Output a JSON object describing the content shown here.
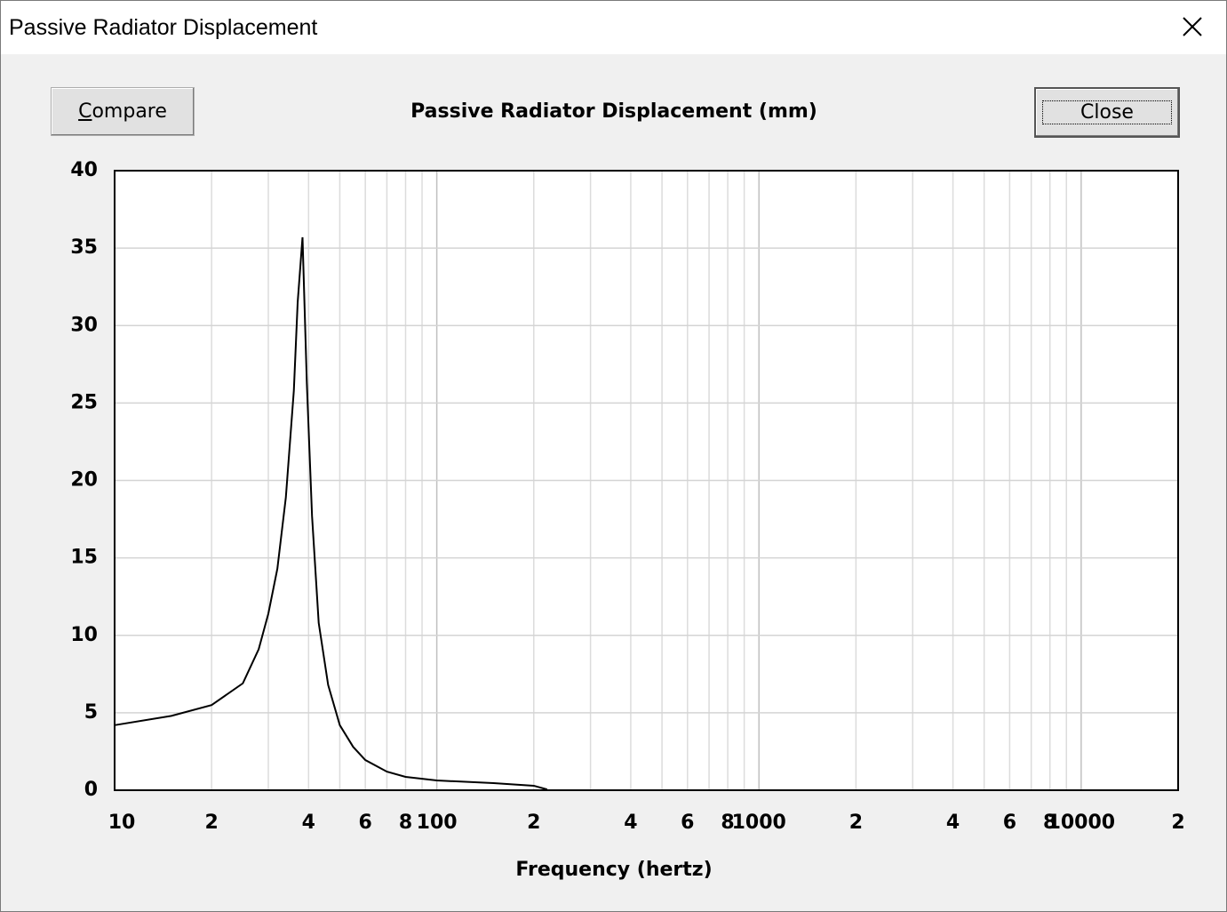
{
  "window": {
    "title": "Passive Radiator Displacement"
  },
  "buttons": {
    "compare": "Compare",
    "close": "Close"
  },
  "chart_data": {
    "type": "line",
    "title": "Passive Radiator Displacement (mm)",
    "x_label": "Frequency (hertz)",
    "x": [
      10,
      15,
      20,
      25,
      28,
      30,
      32,
      34,
      35,
      36,
      37,
      38.3,
      39.5,
      41,
      43,
      46,
      50,
      55,
      60,
      70,
      80,
      100,
      150,
      200,
      220
    ],
    "values": [
      4.2,
      4.8,
      5.5,
      6.9,
      9.1,
      11.4,
      14.3,
      18.9,
      22.4,
      25.8,
      31.5,
      35.7,
      26.3,
      17.7,
      10.8,
      6.8,
      4.2,
      2.8,
      1.95,
      1.2,
      0.86,
      0.63,
      0.46,
      0.29,
      0.05
    ],
    "color": "#000000",
    "xlog": true,
    "grid": true,
    "xlim": [
      10,
      20000
    ],
    "ylim": [
      0,
      40
    ],
    "xticks": [
      10,
      {
        "value": 20,
        "label": "2"
      },
      {
        "value": 40,
        "label": "4"
      },
      {
        "value": 60,
        "label": "6"
      },
      {
        "value": 80,
        "label": "8"
      },
      100,
      {
        "value": 200,
        "label": "2"
      },
      {
        "value": 400,
        "label": "4"
      },
      {
        "value": 600,
        "label": "6"
      },
      {
        "value": 800,
        "label": "8"
      },
      1000,
      {
        "value": 2000,
        "label": "2"
      },
      {
        "value": 4000,
        "label": "4"
      },
      {
        "value": 6000,
        "label": "6"
      },
      {
        "value": 8000,
        "label": "8"
      },
      10000,
      {
        "value": 20000,
        "label": "2"
      }
    ],
    "x_minor_ticks": [
      30,
      50,
      70,
      90,
      300,
      500,
      700,
      900,
      3000,
      5000,
      7000,
      9000
    ],
    "yticks": [
      0,
      5,
      10,
      15,
      20,
      25,
      30,
      35,
      40
    ]
  }
}
